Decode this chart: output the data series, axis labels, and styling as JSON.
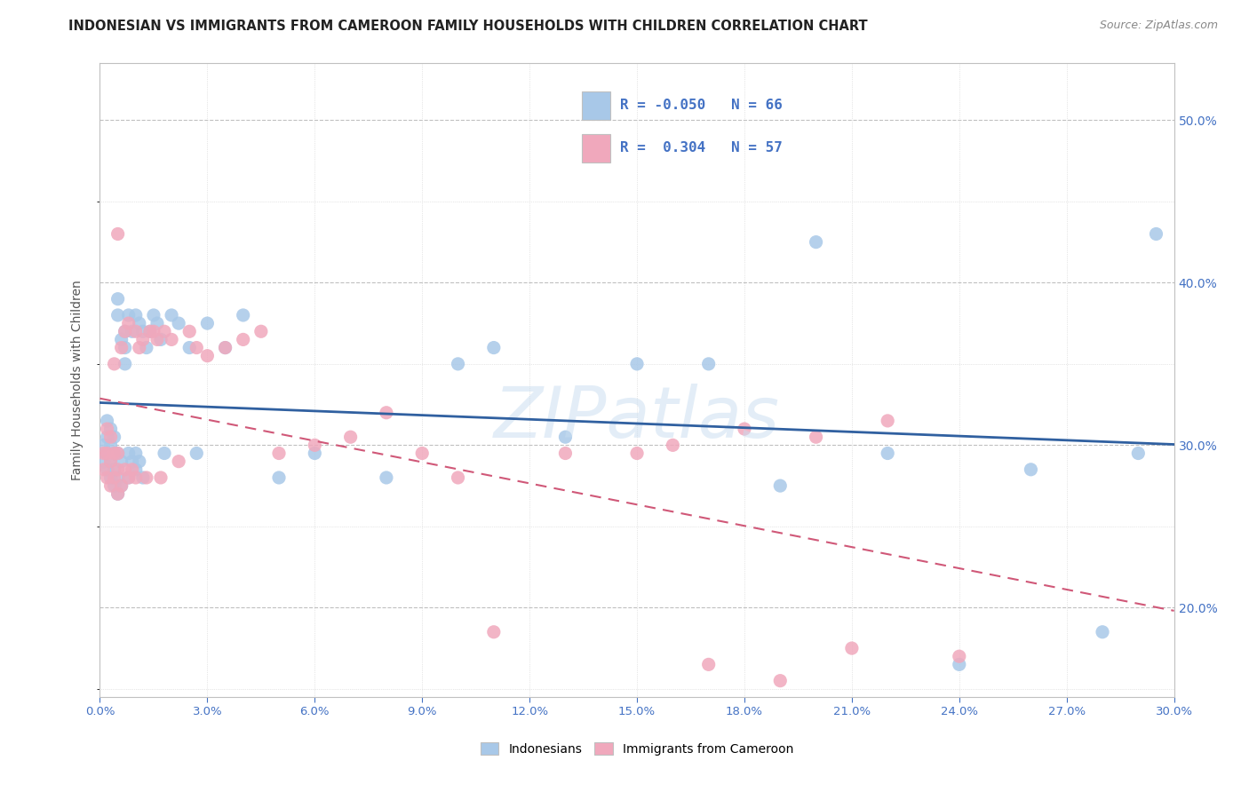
{
  "title": "INDONESIAN VS IMMIGRANTS FROM CAMEROON FAMILY HOUSEHOLDS WITH CHILDREN CORRELATION CHART",
  "source": "Source: ZipAtlas.com",
  "ylabel": "Family Households with Children",
  "legend_label1": "Indonesians",
  "legend_label2": "Immigrants from Cameroon",
  "R1": "-0.050",
  "N1": "66",
  "R2": "0.304",
  "N2": "57",
  "blue_color": "#a8c8e8",
  "pink_color": "#f0a8bc",
  "blue_line_color": "#3060a0",
  "pink_line_color": "#d05878",
  "x_min": 0.0,
  "x_max": 0.3,
  "y_min": 0.145,
  "y_max": 0.535,
  "blue_scatter_x": [
    0.001,
    0.001,
    0.002,
    0.002,
    0.002,
    0.002,
    0.003,
    0.003,
    0.003,
    0.003,
    0.004,
    0.004,
    0.004,
    0.004,
    0.005,
    0.005,
    0.005,
    0.005,
    0.005,
    0.006,
    0.006,
    0.006,
    0.007,
    0.007,
    0.007,
    0.008,
    0.008,
    0.008,
    0.009,
    0.009,
    0.01,
    0.01,
    0.01,
    0.011,
    0.011,
    0.012,
    0.012,
    0.013,
    0.014,
    0.015,
    0.016,
    0.017,
    0.018,
    0.02,
    0.022,
    0.025,
    0.027,
    0.03,
    0.035,
    0.04,
    0.05,
    0.06,
    0.08,
    0.1,
    0.11,
    0.13,
    0.15,
    0.17,
    0.19,
    0.2,
    0.22,
    0.24,
    0.26,
    0.28,
    0.29,
    0.295
  ],
  "blue_scatter_y": [
    0.29,
    0.3,
    0.285,
    0.295,
    0.305,
    0.315,
    0.28,
    0.29,
    0.3,
    0.31,
    0.275,
    0.285,
    0.295,
    0.305,
    0.27,
    0.28,
    0.295,
    0.38,
    0.39,
    0.275,
    0.29,
    0.365,
    0.35,
    0.36,
    0.37,
    0.28,
    0.295,
    0.38,
    0.29,
    0.37,
    0.285,
    0.295,
    0.38,
    0.29,
    0.375,
    0.28,
    0.37,
    0.36,
    0.37,
    0.38,
    0.375,
    0.365,
    0.295,
    0.38,
    0.375,
    0.36,
    0.295,
    0.375,
    0.36,
    0.38,
    0.28,
    0.295,
    0.28,
    0.35,
    0.36,
    0.305,
    0.35,
    0.35,
    0.275,
    0.425,
    0.295,
    0.165,
    0.285,
    0.185,
    0.295,
    0.43
  ],
  "pink_scatter_x": [
    0.001,
    0.001,
    0.002,
    0.002,
    0.002,
    0.003,
    0.003,
    0.003,
    0.004,
    0.004,
    0.004,
    0.005,
    0.005,
    0.005,
    0.005,
    0.006,
    0.006,
    0.007,
    0.007,
    0.008,
    0.008,
    0.009,
    0.01,
    0.01,
    0.011,
    0.012,
    0.013,
    0.014,
    0.015,
    0.016,
    0.017,
    0.018,
    0.02,
    0.022,
    0.025,
    0.027,
    0.03,
    0.035,
    0.04,
    0.045,
    0.05,
    0.06,
    0.07,
    0.08,
    0.09,
    0.1,
    0.11,
    0.13,
    0.15,
    0.16,
    0.17,
    0.18,
    0.19,
    0.2,
    0.21,
    0.22,
    0.24
  ],
  "pink_scatter_y": [
    0.285,
    0.295,
    0.28,
    0.295,
    0.31,
    0.275,
    0.29,
    0.305,
    0.28,
    0.295,
    0.35,
    0.27,
    0.285,
    0.295,
    0.43,
    0.275,
    0.36,
    0.285,
    0.37,
    0.28,
    0.375,
    0.285,
    0.28,
    0.37,
    0.36,
    0.365,
    0.28,
    0.37,
    0.37,
    0.365,
    0.28,
    0.37,
    0.365,
    0.29,
    0.37,
    0.36,
    0.355,
    0.36,
    0.365,
    0.37,
    0.295,
    0.3,
    0.305,
    0.32,
    0.295,
    0.28,
    0.185,
    0.295,
    0.295,
    0.3,
    0.165,
    0.31,
    0.155,
    0.305,
    0.175,
    0.315,
    0.17
  ],
  "watermark": "ZIPatlas",
  "ytick_right": true
}
